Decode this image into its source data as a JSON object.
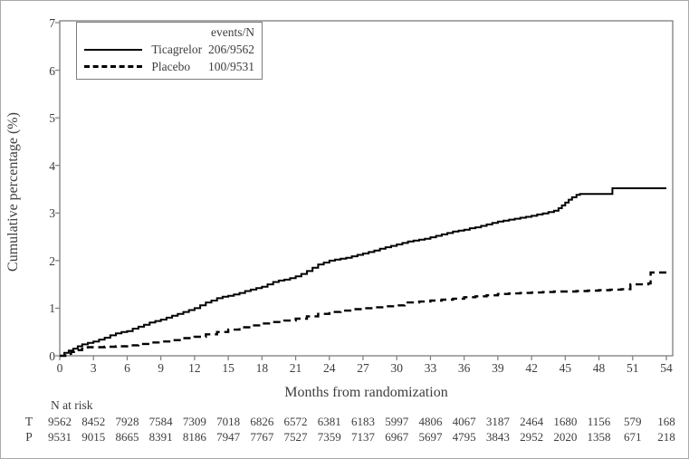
{
  "figure": {
    "y_axis_title": "Cumulative percentage (%)",
    "x_axis_title": "Months from randomization",
    "legend": {
      "header": "events/N",
      "entries": [
        {
          "label": "Ticagrelor",
          "events_n": "206/9562",
          "line": "solid"
        },
        {
          "label": "Placebo",
          "events_n": "100/9531",
          "line": "dashed"
        }
      ]
    },
    "at_risk": {
      "header": "N at risk",
      "rows": [
        {
          "label": "T",
          "values": [
            9562,
            8452,
            7928,
            7584,
            7309,
            7018,
            6826,
            6572,
            6381,
            6183,
            5997,
            4806,
            4067,
            3187,
            2464,
            1680,
            1156,
            579,
            168
          ]
        },
        {
          "label": "P",
          "values": [
            9531,
            9015,
            8665,
            8391,
            8186,
            7947,
            7767,
            7527,
            7359,
            7137,
            6967,
            5697,
            4795,
            3843,
            2952,
            2020,
            1358,
            671,
            218
          ]
        }
      ]
    }
  },
  "chart_data": {
    "type": "line",
    "subtype": "kaplan-meier-step",
    "title": "",
    "xlabel": "Months from randomization",
    "ylabel": "Cumulative percentage (%)",
    "xlim": [
      0,
      54
    ],
    "ylim": [
      0,
      7
    ],
    "x_ticks": [
      0,
      3,
      6,
      9,
      12,
      15,
      18,
      21,
      24,
      27,
      30,
      33,
      36,
      39,
      42,
      45,
      48,
      51,
      54
    ],
    "y_ticks": [
      0,
      1,
      2,
      3,
      4,
      5,
      6,
      7
    ],
    "grid": false,
    "legend_position": "top-left-inside",
    "colors": {
      "curves": "#000000",
      "frame": "#7d7d7d",
      "text": "#3d3d3d"
    },
    "series": [
      {
        "name": "Ticagrelor",
        "events_n": "206/9562",
        "line": "solid",
        "points": [
          [
            0,
            0
          ],
          [
            0.4,
            0.06
          ],
          [
            0.8,
            0.11
          ],
          [
            1.2,
            0.15
          ],
          [
            1.6,
            0.2
          ],
          [
            2,
            0.24
          ],
          [
            2.5,
            0.27
          ],
          [
            3,
            0.3
          ],
          [
            3.5,
            0.34
          ],
          [
            4,
            0.38
          ],
          [
            4.5,
            0.43
          ],
          [
            5,
            0.47
          ],
          [
            5.5,
            0.5
          ],
          [
            6,
            0.52
          ],
          [
            6.5,
            0.57
          ],
          [
            7,
            0.61
          ],
          [
            7.5,
            0.65
          ],
          [
            8,
            0.7
          ],
          [
            8.5,
            0.73
          ],
          [
            9,
            0.76
          ],
          [
            9.5,
            0.8
          ],
          [
            10,
            0.84
          ],
          [
            10.5,
            0.88
          ],
          [
            11,
            0.92
          ],
          [
            11.5,
            0.96
          ],
          [
            12,
            1.0
          ],
          [
            12.5,
            1.06
          ],
          [
            13,
            1.12
          ],
          [
            13.5,
            1.16
          ],
          [
            14,
            1.21
          ],
          [
            14.5,
            1.24
          ],
          [
            15,
            1.26
          ],
          [
            15.5,
            1.29
          ],
          [
            16,
            1.32
          ],
          [
            16.5,
            1.36
          ],
          [
            17,
            1.39
          ],
          [
            17.5,
            1.42
          ],
          [
            18,
            1.45
          ],
          [
            18.5,
            1.5
          ],
          [
            19,
            1.55
          ],
          [
            19.5,
            1.58
          ],
          [
            20,
            1.6
          ],
          [
            20.5,
            1.63
          ],
          [
            21,
            1.67
          ],
          [
            21.5,
            1.72
          ],
          [
            22,
            1.78
          ],
          [
            22.5,
            1.85
          ],
          [
            23,
            1.92
          ],
          [
            23.5,
            1.96
          ],
          [
            24,
            2.0
          ],
          [
            24.5,
            2.02
          ],
          [
            25,
            2.04
          ],
          [
            25.5,
            2.06
          ],
          [
            26,
            2.09
          ],
          [
            26.5,
            2.12
          ],
          [
            27,
            2.15
          ],
          [
            27.5,
            2.18
          ],
          [
            28,
            2.21
          ],
          [
            28.5,
            2.25
          ],
          [
            29,
            2.28
          ],
          [
            29.5,
            2.31
          ],
          [
            30,
            2.34
          ],
          [
            30.5,
            2.37
          ],
          [
            31,
            2.4
          ],
          [
            31.5,
            2.42
          ],
          [
            32,
            2.44
          ],
          [
            32.5,
            2.46
          ],
          [
            33,
            2.49
          ],
          [
            33.5,
            2.52
          ],
          [
            34,
            2.55
          ],
          [
            34.5,
            2.58
          ],
          [
            35,
            2.61
          ],
          [
            35.5,
            2.63
          ],
          [
            36,
            2.65
          ],
          [
            36.5,
            2.68
          ],
          [
            37,
            2.7
          ],
          [
            37.5,
            2.73
          ],
          [
            38,
            2.76
          ],
          [
            38.5,
            2.79
          ],
          [
            39,
            2.82
          ],
          [
            39.5,
            2.84
          ],
          [
            40,
            2.86
          ],
          [
            40.5,
            2.88
          ],
          [
            41,
            2.9
          ],
          [
            41.5,
            2.92
          ],
          [
            42,
            2.94
          ],
          [
            42.5,
            2.97
          ],
          [
            43,
            2.99
          ],
          [
            43.5,
            3.02
          ],
          [
            44,
            3.05
          ],
          [
            44.4,
            3.1
          ],
          [
            44.7,
            3.16
          ],
          [
            45,
            3.22
          ],
          [
            45.3,
            3.28
          ],
          [
            45.6,
            3.33
          ],
          [
            46,
            3.38
          ],
          [
            46.3,
            3.4
          ],
          [
            49.1,
            3.4
          ],
          [
            49.2,
            3.52
          ],
          [
            54,
            3.52
          ]
        ]
      },
      {
        "name": "Placebo",
        "events_n": "100/9531",
        "line": "dashed",
        "points": [
          [
            0,
            0
          ],
          [
            0.5,
            0.04
          ],
          [
            1,
            0.08
          ],
          [
            1.5,
            0.12
          ],
          [
            2,
            0.15
          ],
          [
            2.5,
            0.18
          ],
          [
            4,
            0.19
          ],
          [
            5,
            0.2
          ],
          [
            6,
            0.22
          ],
          [
            7,
            0.25
          ],
          [
            8,
            0.28
          ],
          [
            9,
            0.3
          ],
          [
            10,
            0.33
          ],
          [
            11,
            0.37
          ],
          [
            12,
            0.4
          ],
          [
            13,
            0.45
          ],
          [
            14,
            0.5
          ],
          [
            15,
            0.55
          ],
          [
            16,
            0.6
          ],
          [
            17,
            0.64
          ],
          [
            18,
            0.68
          ],
          [
            19,
            0.71
          ],
          [
            20,
            0.74
          ],
          [
            21,
            0.78
          ],
          [
            22,
            0.83
          ],
          [
            23,
            0.88
          ],
          [
            24,
            0.92
          ],
          [
            25,
            0.95
          ],
          [
            26,
            0.98
          ],
          [
            27,
            1.0
          ],
          [
            28,
            1.02
          ],
          [
            29,
            1.04
          ],
          [
            30,
            1.06
          ],
          [
            30.7,
            1.12
          ],
          [
            32,
            1.14
          ],
          [
            33,
            1.16
          ],
          [
            34,
            1.18
          ],
          [
            35,
            1.2
          ],
          [
            36,
            1.23
          ],
          [
            37,
            1.25
          ],
          [
            38,
            1.27
          ],
          [
            39,
            1.3
          ],
          [
            40,
            1.31
          ],
          [
            41,
            1.32
          ],
          [
            42,
            1.33
          ],
          [
            43,
            1.34
          ],
          [
            44,
            1.35
          ],
          [
            45,
            1.35
          ],
          [
            46,
            1.36
          ],
          [
            47,
            1.37
          ],
          [
            48,
            1.38
          ],
          [
            49,
            1.39
          ],
          [
            50,
            1.4
          ],
          [
            50.8,
            1.5
          ],
          [
            52.4,
            1.52
          ],
          [
            52.6,
            1.75
          ],
          [
            54,
            1.77
          ]
        ]
      }
    ]
  }
}
